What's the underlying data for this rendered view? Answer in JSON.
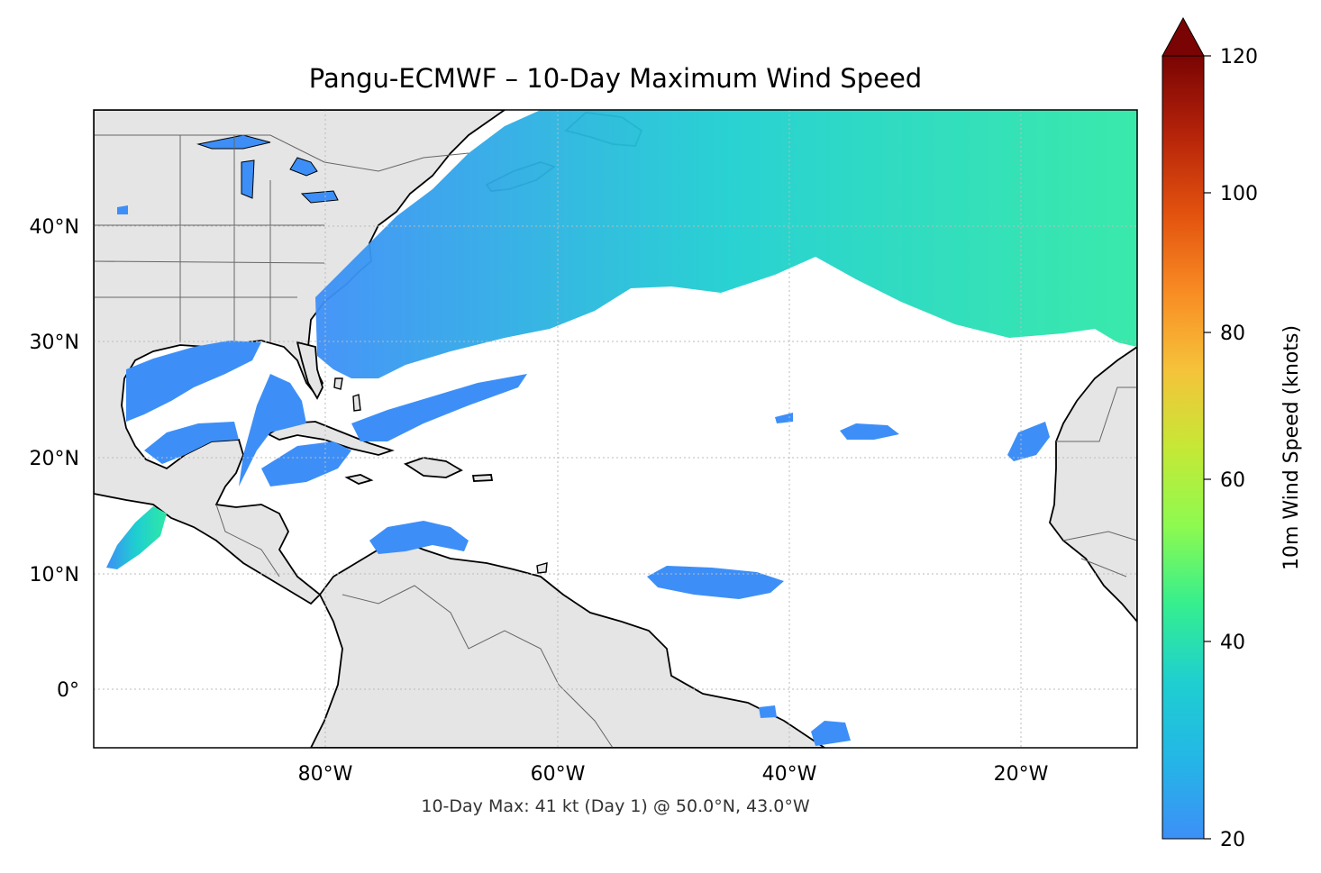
{
  "title": "Pangu-ECMWF – 10-Day Maximum Wind Speed",
  "footer": "10-Day Max: 41 kt (Day 1) @ 50.0°N, 43.0°W",
  "axes": {
    "lat_ticks": [
      "40°N",
      "30°N",
      "20°N",
      "10°N",
      "0°"
    ],
    "lon_ticks": [
      "80°W",
      "60°W",
      "40°W",
      "20°W"
    ],
    "lat_range": [
      -5,
      50
    ],
    "lon_range": [
      -100,
      -10
    ]
  },
  "colorbar": {
    "label": "10m Wind Speed (knots)",
    "ticks": [
      "20",
      "40",
      "60",
      "80",
      "100",
      "120"
    ],
    "range": [
      20,
      120
    ],
    "extend": "max",
    "colormap": "turbo"
  },
  "colors": {
    "land": "#e5e5e5",
    "ocean": "#ffffff",
    "wind_low": "#3b8ef6",
    "wind_mid": "#1ed1c8",
    "wind_high": "#3df28a",
    "extend_triangle": "#7a0403"
  },
  "map_features": [
    "coastlines",
    "country borders",
    "us state borders",
    "gridlines"
  ]
}
